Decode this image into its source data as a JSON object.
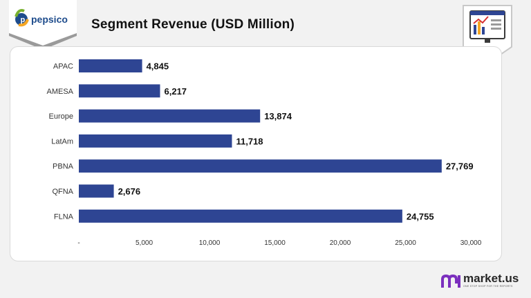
{
  "header": {
    "logo_text": "pepsico",
    "title": "Segment Revenue (USD Million)"
  },
  "brand": {
    "name": "market.us",
    "tagline": "ONE STOP SHOP FOR THE REPORTS"
  },
  "icons": {
    "logo": "pepsico-logo-icon",
    "report": "report-dashboard-icon",
    "brand": "market-us-logo-icon"
  },
  "colors": {
    "bar": "#2e4593",
    "panel": "#ffffff",
    "background": "#f2f2f2",
    "logo_green": "#79b12e",
    "logo_orange": "#f5a623",
    "logo_blue": "#1e4c8c",
    "brand_purple": "#7b2fbe"
  },
  "chart_data": {
    "type": "bar",
    "orientation": "horizontal",
    "title": "Segment Revenue (USD Million)",
    "categories": [
      "APAC",
      "AMESA",
      "Europe",
      "LatAm",
      "PBNA",
      "QFNA",
      "FLNA"
    ],
    "values": [
      4845,
      6217,
      13874,
      11718,
      27769,
      2676,
      24755
    ],
    "value_labels": [
      "4,845",
      "6,217",
      "13,874",
      "11,718",
      "27,769",
      "2,676",
      "24,755"
    ],
    "xlim": [
      0,
      30000
    ],
    "x_ticks": [
      0,
      5000,
      10000,
      15000,
      20000,
      25000,
      30000
    ],
    "x_tick_labels": [
      "-",
      "5,000",
      "10,000",
      "15,000",
      "20,000",
      "25,000",
      "30,000"
    ],
    "grid": false,
    "legend": "none"
  }
}
